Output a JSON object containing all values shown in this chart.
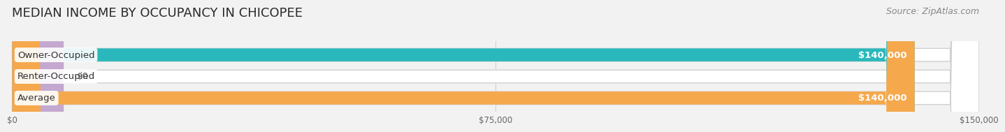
{
  "title": "MEDIAN INCOME BY OCCUPANCY IN CHICOPEE",
  "source": "Source: ZipAtlas.com",
  "categories": [
    "Owner-Occupied",
    "Renter-Occupied",
    "Average"
  ],
  "values": [
    140000,
    0,
    140000
  ],
  "bar_colors": [
    "#2ab8bc",
    "#c4a8d0",
    "#f5a84c"
  ],
  "label_values": [
    "$140,000",
    "$0",
    "$140,000"
  ],
  "xlim": [
    0,
    150000
  ],
  "xticks": [
    0,
    75000,
    150000
  ],
  "xtick_labels": [
    "$0",
    "$75,000",
    "$150,000"
  ],
  "title_fontsize": 13,
  "source_fontsize": 9,
  "label_fontsize": 9.5,
  "bar_label_fontsize": 9.5,
  "background_color": "#f2f2f2",
  "bar_bg_color": "#ebebeb",
  "bar_height": 0.6,
  "renter_draw_val": 8000,
  "label_box_color": "white",
  "grid_color": "#d0d0d0",
  "value_label_color_inside": "white",
  "value_label_color_outside": "#555555"
}
